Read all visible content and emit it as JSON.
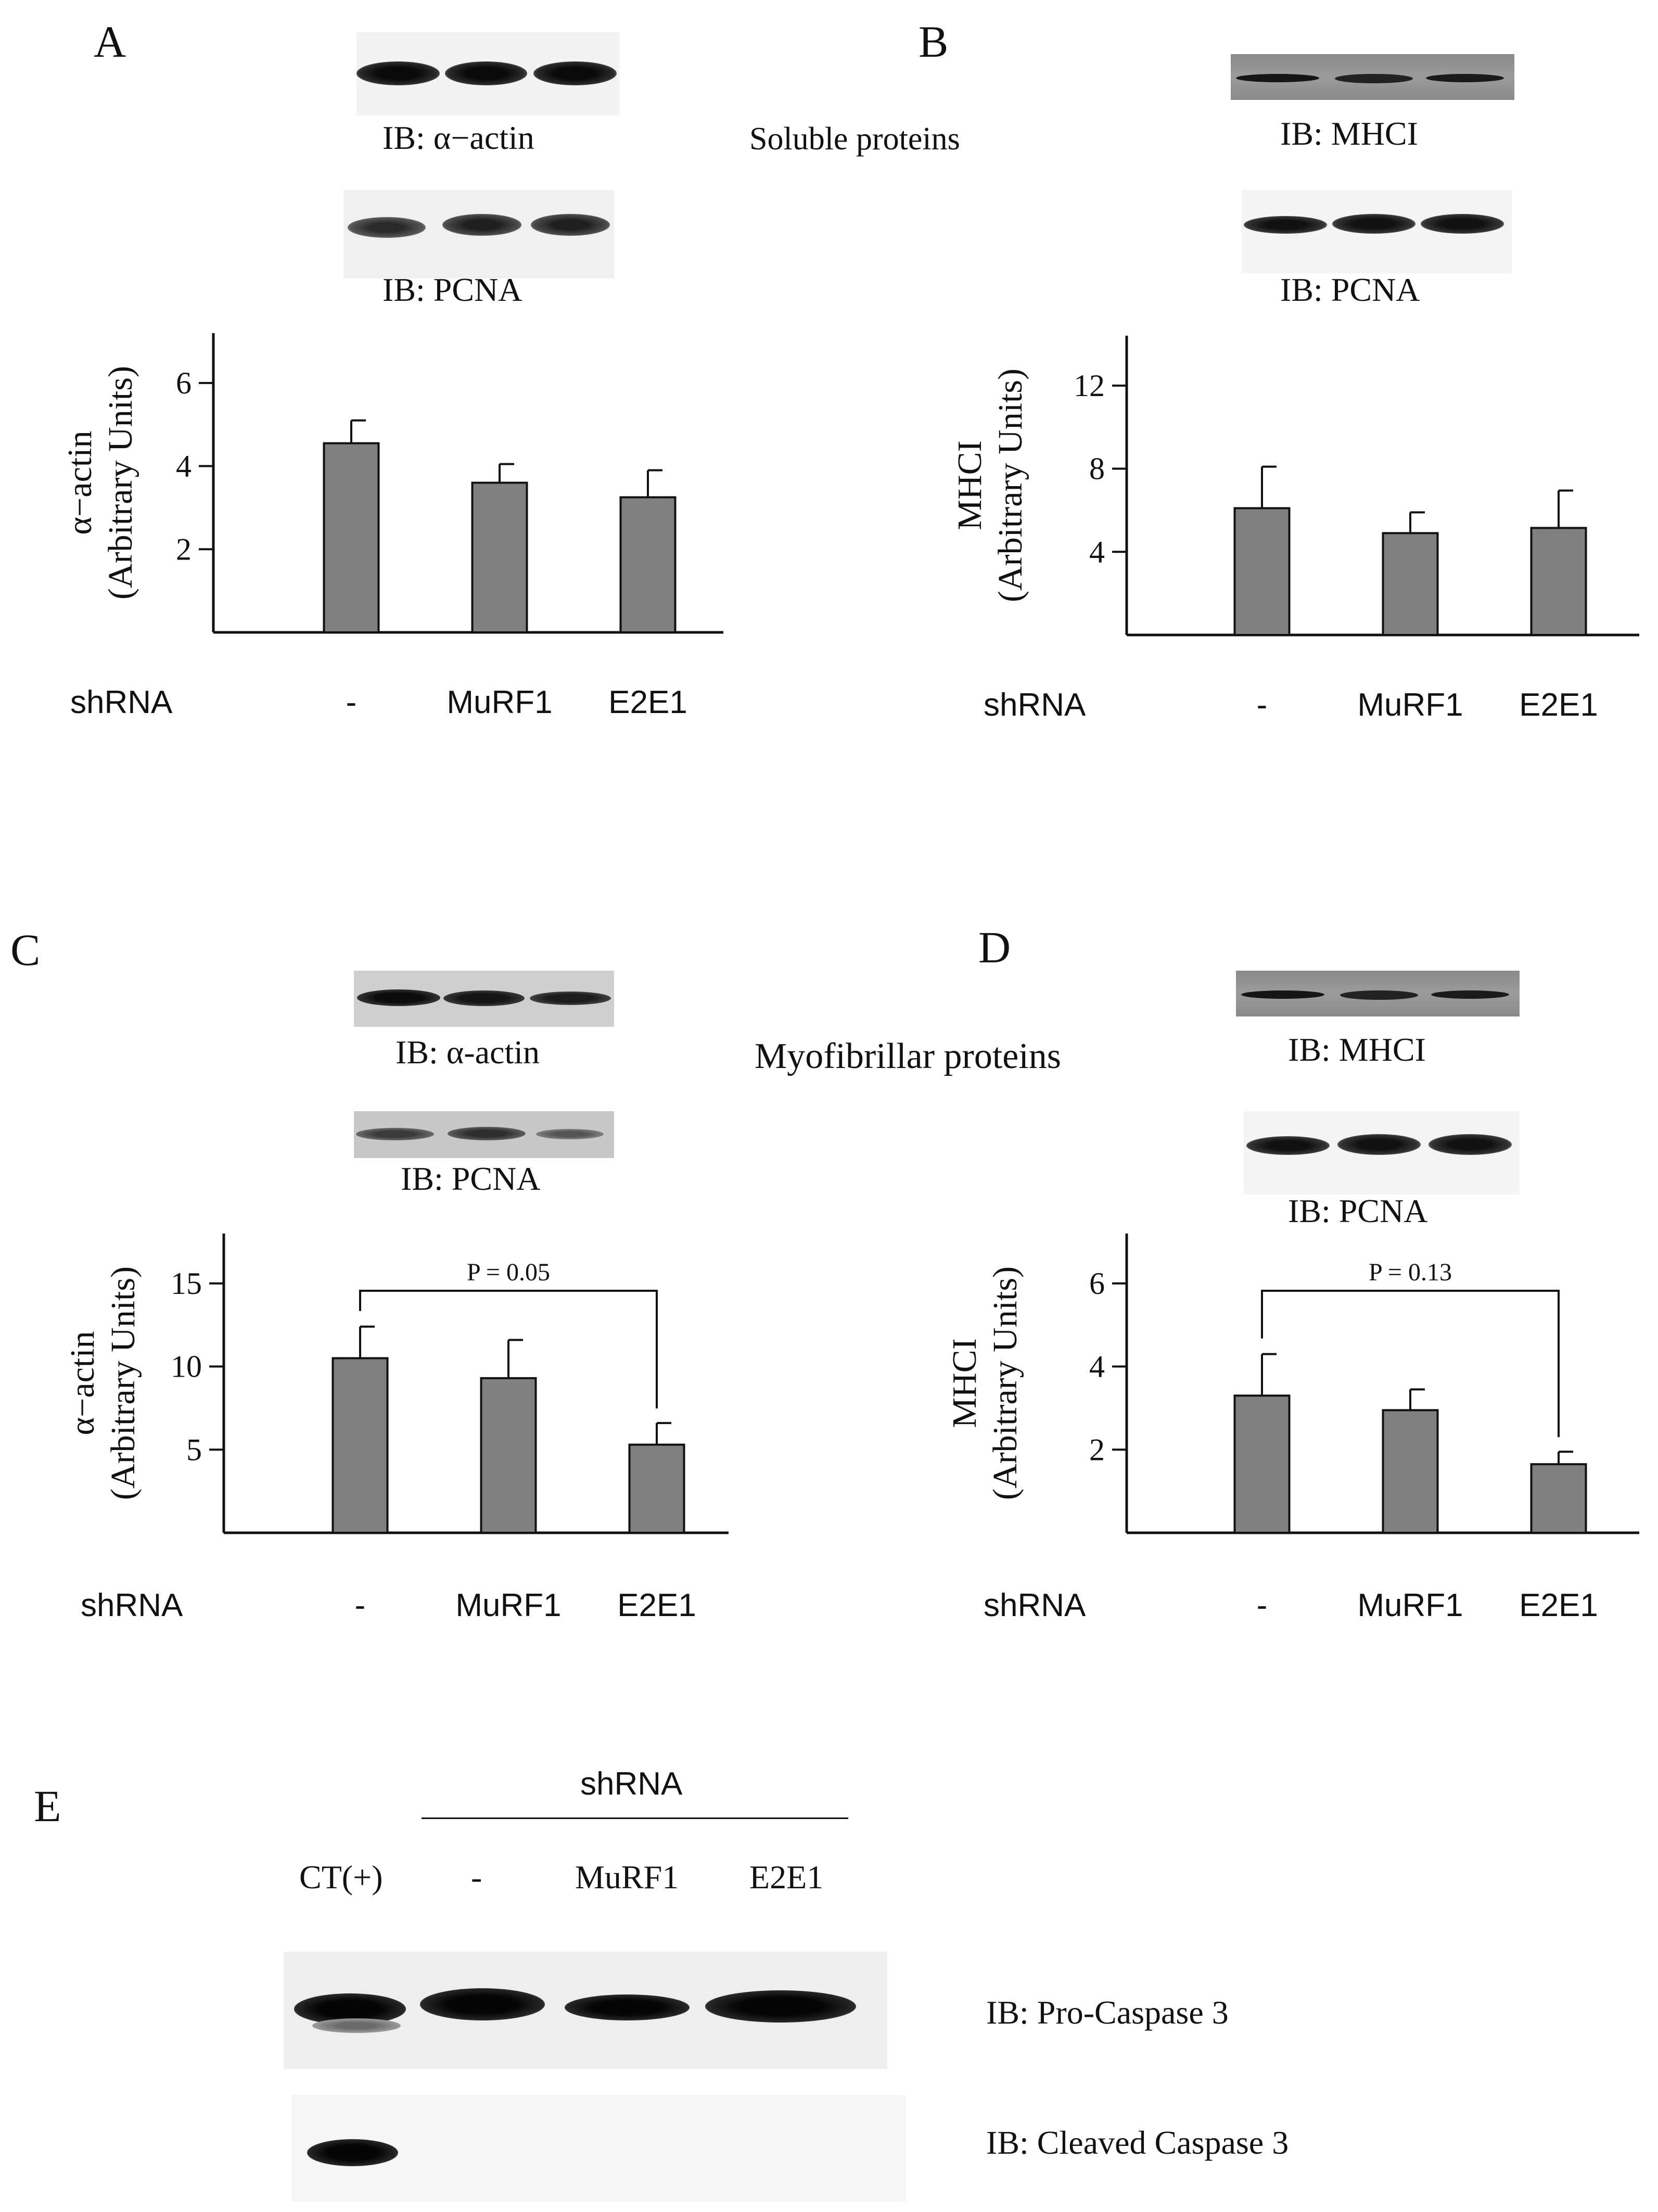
{
  "figure": {
    "section_top_title": "Soluble proteins",
    "section_mid_title": "Myofibrillar proteins",
    "panels": {
      "A": {
        "letter": "A",
        "blot_top_label": "IB: α−actin",
        "blot_bottom_label": "IB: PCNA"
      },
      "B": {
        "letter": "B",
        "blot_top_label": "IB: MHCI",
        "blot_bottom_label": "IB: PCNA"
      },
      "C": {
        "letter": "C",
        "blot_top_label": "IB: α-actin",
        "blot_bottom_label": "IB: PCNA"
      },
      "D": {
        "letter": "D",
        "blot_top_label": "IB: MHCI",
        "blot_bottom_label": "IB: PCNA"
      },
      "E": {
        "letter": "E",
        "group_label": "shRNA",
        "lanes": [
          "CT(+)",
          "-",
          "MuRF1",
          "E2E1"
        ],
        "blot_top_label": "IB: Pro-Caspase 3",
        "blot_bottom_label": "IB: Cleaved Caspase 3"
      }
    }
  },
  "chart_data": [
    {
      "panel": "A",
      "type": "bar",
      "group_label": "shRNA",
      "categories": [
        "-",
        "MuRF1",
        "E2E1"
      ],
      "values": [
        4.55,
        3.6,
        3.25
      ],
      "errors": [
        0.55,
        0.45,
        0.65
      ],
      "ylabel": "α−actin",
      "ylabel2": "(Arbitrary Units)",
      "ylim": [
        0,
        7.2
      ],
      "yticks": [
        2,
        4,
        6
      ],
      "grid": false
    },
    {
      "panel": "B",
      "type": "bar",
      "group_label": "shRNA",
      "categories": [
        "-",
        "MuRF1",
        "E2E1"
      ],
      "values": [
        6.1,
        4.9,
        5.15
      ],
      "errors": [
        2.0,
        1.0,
        1.8
      ],
      "ylabel": "MHCI",
      "ylabel2": "(Arbitrary Units)",
      "ylim": [
        0,
        14.4
      ],
      "yticks": [
        4,
        8,
        12
      ],
      "grid": false
    },
    {
      "panel": "C",
      "type": "bar",
      "group_label": "shRNA",
      "categories": [
        "-",
        "MuRF1",
        "E2E1"
      ],
      "values": [
        10.5,
        9.3,
        5.3
      ],
      "errors": [
        1.9,
        2.3,
        1.3
      ],
      "ylabel": "α−actin",
      "ylabel2": "(Arbitrary Units)",
      "ylim": [
        0,
        18
      ],
      "yticks": [
        5,
        10,
        15
      ],
      "grid": false,
      "annotation": {
        "text": "P = 0.05",
        "from": 0,
        "to": 2
      }
    },
    {
      "panel": "D",
      "type": "bar",
      "group_label": "shRNA",
      "categories": [
        "-",
        "MuRF1",
        "E2E1"
      ],
      "values": [
        3.3,
        2.95,
        1.65
      ],
      "errors": [
        1.0,
        0.5,
        0.3
      ],
      "ylabel": "MHCI",
      "ylabel2": "(Arbitrary Units)",
      "ylim": [
        0,
        7.2
      ],
      "yticks": [
        2,
        4,
        6
      ],
      "grid": false,
      "annotation": {
        "text": "P = 0.13",
        "from": 0,
        "to": 2
      }
    }
  ]
}
